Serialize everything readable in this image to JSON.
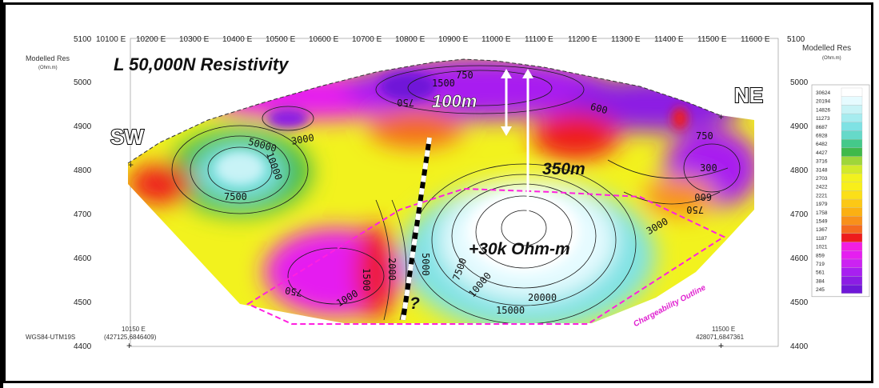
{
  "title": "L 50,000N Resistivity",
  "axis": {
    "top_ticks": [
      "5100",
      "10100 E",
      "10200 E",
      "10300 E",
      "10400 E",
      "10500 E",
      "10600 E",
      "10700 E",
      "10800 E",
      "10900 E",
      "11000 E",
      "11100 E",
      "11200 E",
      "11300 E",
      "11400 E",
      "11500 E",
      "11600 E",
      "5100"
    ],
    "left_ticks": [
      "5000",
      "4900",
      "4800",
      "4700",
      "4600",
      "4500",
      "4400"
    ],
    "right_ticks": [
      "5000",
      "4900",
      "4800",
      "4700",
      "4600",
      "4500",
      "4400"
    ],
    "left_label": "Modelled Res",
    "left_unit": "(Ohm.m)",
    "right_label": "Modelled Res",
    "right_unit": "(Ohm.m)",
    "crs": "WGS84-UTM19S",
    "bottom_left_local": "10150 E",
    "bottom_left_utm": "(427125,6846409)",
    "bottom_right_local": "11500 E",
    "bottom_right_utm": "428071,6847361"
  },
  "legend": {
    "values": [
      "30624",
      "20194",
      "14826",
      "11273",
      "8687",
      "6928",
      "6482",
      "4427",
      "3716",
      "3148",
      "2703",
      "2422",
      "2221",
      "1979",
      "1758",
      "1549",
      "1367",
      "1187",
      "1021",
      "859",
      "719",
      "561",
      "384",
      "245"
    ],
    "colors": [
      "#ffffff",
      "#e6fbff",
      "#c8f3f6",
      "#a6ecef",
      "#7fe2e4",
      "#66d9c9",
      "#44c98a",
      "#3fb94a",
      "#9ed63a",
      "#d2ea2a",
      "#f2f21e",
      "#f8ef1a",
      "#fbdf18",
      "#fcc815",
      "#fbb012",
      "#f8901a",
      "#f46a1f",
      "#ee1c1c",
      "#f11fe2",
      "#e51ff0",
      "#cc22f2",
      "#a81ff0",
      "#8c1ce4",
      "#6f18d8"
    ]
  },
  "labels": {
    "sw": "SW",
    "ne": "NE",
    "depth_100": "100m",
    "depth_350": "350m",
    "high_res": "+30k Ohm-m",
    "question": "?",
    "outline": "Chargeability Outline"
  },
  "contour_labels": [
    "1500",
    "750",
    "750",
    "600",
    "750",
    "3000",
    "50000",
    "10000",
    "7500",
    "300",
    "600",
    "750",
    "3000",
    "7500",
    "5000",
    "2000",
    "1500",
    "750",
    "10000",
    "20000",
    "15000",
    "1000"
  ]
}
